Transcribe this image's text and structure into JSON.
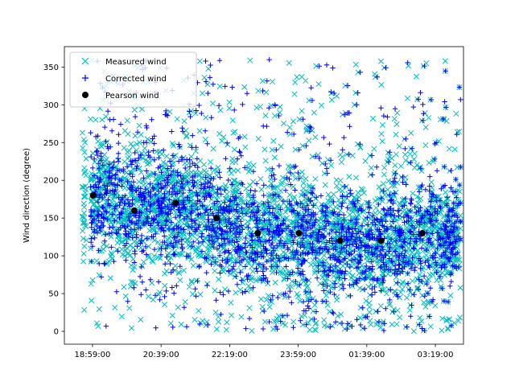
{
  "chart_data": {
    "type": "scatter",
    "title": "",
    "xlabel": "",
    "ylabel": "Wind direction (degree)",
    "x_ticks": [
      "18:59:00",
      "20:39:00",
      "22:19:00",
      "23:59:00",
      "01:39:00",
      "03:19:00"
    ],
    "xlim": [
      "18:18:00",
      "04:00:00"
    ],
    "ylim": [
      -17,
      377
    ],
    "y_ticks": [
      0,
      50,
      100,
      150,
      200,
      250,
      300,
      350
    ],
    "grid": false,
    "legend_position": "top-left",
    "series": [
      {
        "name": "Measured wind",
        "marker": "x",
        "color": "#00bfbf",
        "x_range": [
          "18:44:00",
          "03:56:00"
        ],
        "y_range": [
          0,
          360
        ],
        "approx_points": 9000
      },
      {
        "name": "Corrected wind",
        "marker": "+",
        "color": "#0000ff",
        "x_range": [
          "18:56:00",
          "03:56:00"
        ],
        "y_range": [
          0,
          360
        ],
        "approx_points": 9000
      },
      {
        "name": "Pearson wind",
        "marker": "o",
        "color": "#000000",
        "x": [
          "19:00:00",
          "20:00:00",
          "21:00:00",
          "22:00:00",
          "23:00:00",
          "00:00:00",
          "01:00:00",
          "02:00:00",
          "03:00:00"
        ],
        "y": [
          180,
          160,
          170,
          150,
          130,
          130,
          120,
          120,
          130
        ]
      }
    ]
  }
}
